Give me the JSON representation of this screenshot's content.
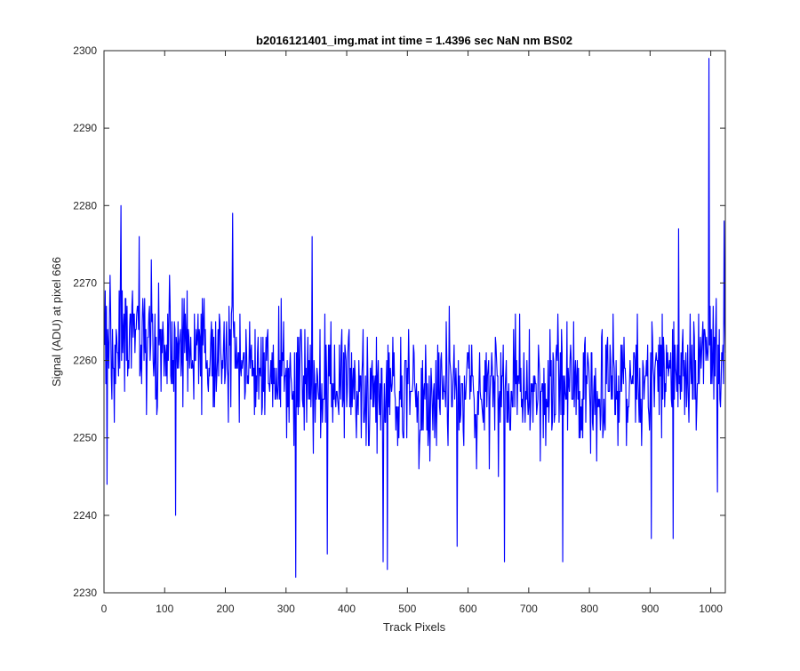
{
  "chart_data": {
    "type": "line",
    "title": "b2016121401_img.mat int time = 1.4396 sec  NaN nm BS02",
    "xlabel": "Track Pixels",
    "ylabel": "Signal (ADU) at pixel 666",
    "xlim": [
      0,
      1024
    ],
    "ylim": [
      2230,
      2300
    ],
    "xticks": [
      0,
      100,
      200,
      300,
      400,
      500,
      600,
      700,
      800,
      900,
      1000
    ],
    "yticks": [
      2230,
      2240,
      2250,
      2260,
      2270,
      2280,
      2290,
      2300
    ],
    "xtick_labels": [
      "0",
      "100",
      "200",
      "300",
      "400",
      "500",
      "600",
      "700",
      "800",
      "900",
      "1000"
    ],
    "ytick_labels": [
      "2230",
      "2240",
      "2250",
      "2260",
      "2270",
      "2280",
      "2290",
      "2300"
    ],
    "grid": false,
    "line_color": "#0000ff",
    "series": [
      {
        "style": "noisy signal trace, approx. one sample per track pixel",
        "key_points": [
          {
            "x": 1,
            "y": 2262
          },
          {
            "x": 5,
            "y": 2244
          },
          {
            "x": 28,
            "y": 2280
          },
          {
            "x": 58,
            "y": 2276
          },
          {
            "x": 118,
            "y": 2240
          },
          {
            "x": 212,
            "y": 2279
          },
          {
            "x": 316,
            "y": 2232
          },
          {
            "x": 343,
            "y": 2276
          },
          {
            "x": 368,
            "y": 2235
          },
          {
            "x": 460,
            "y": 2234
          },
          {
            "x": 467,
            "y": 2233
          },
          {
            "x": 582,
            "y": 2236
          },
          {
            "x": 660,
            "y": 2234
          },
          {
            "x": 756,
            "y": 2234
          },
          {
            "x": 902,
            "y": 2237
          },
          {
            "x": 938,
            "y": 2237
          },
          {
            "x": 947,
            "y": 2277
          },
          {
            "x": 997,
            "y": 2299
          },
          {
            "x": 1011,
            "y": 2243
          },
          {
            "x": 1022,
            "y": 2278
          }
        ],
        "mean_profile": [
          {
            "x": 0,
            "y": 2262
          },
          {
            "x": 100,
            "y": 2262
          },
          {
            "x": 200,
            "y": 2260
          },
          {
            "x": 300,
            "y": 2258
          },
          {
            "x": 400,
            "y": 2257
          },
          {
            "x": 500,
            "y": 2256
          },
          {
            "x": 600,
            "y": 2256
          },
          {
            "x": 700,
            "y": 2256
          },
          {
            "x": 800,
            "y": 2257
          },
          {
            "x": 900,
            "y": 2258
          },
          {
            "x": 1000,
            "y": 2261
          },
          {
            "x": 1024,
            "y": 2262
          }
        ],
        "noise_amplitude": 12
      }
    ]
  }
}
